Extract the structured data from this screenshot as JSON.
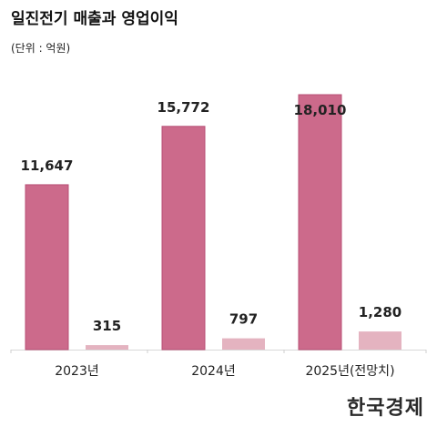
{
  "title": "일진전기 매출과 영업이익",
  "unit": "(단위 : 억원)",
  "brand": "한국경제",
  "chart_data": {
    "type": "bar",
    "categories": [
      "2023년",
      "2024년",
      "2025년(전망치)"
    ],
    "series": [
      {
        "values": [
          11647,
          15772,
          18010
        ],
        "color": "#cc6a8b"
      },
      {
        "values": [
          315,
          797,
          1280
        ],
        "color": "#e4b3c0"
      }
    ],
    "data_labels": [
      [
        "11,647",
        "15,772",
        "18,010"
      ],
      [
        "315",
        "797",
        "1,280"
      ]
    ],
    "ylim": [
      0,
      18010
    ],
    "grid": false
  }
}
